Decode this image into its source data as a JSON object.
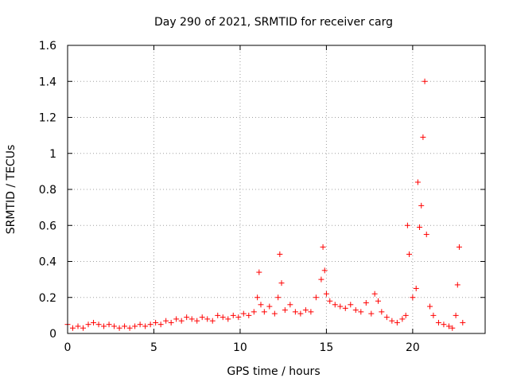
{
  "chart_data": {
    "type": "scatter",
    "title": "Day 290 of 2021, SRMTID for receiver carg",
    "xlabel": "GPS time / hours",
    "ylabel": "SRMTID / TECUs",
    "xlim": [
      0,
      24.2
    ],
    "ylim": [
      0,
      1.6
    ],
    "xticks": [
      0,
      5,
      10,
      15,
      20
    ],
    "xtick_labels": [
      "0",
      "5",
      "10",
      "15",
      "20"
    ],
    "yticks": [
      0,
      0.2,
      0.4,
      0.6,
      0.8,
      1.0,
      1.2,
      1.4,
      1.6
    ],
    "ytick_labels": [
      "0",
      "0.2",
      "0.4",
      "0.6",
      "0.8",
      "1",
      "1.2",
      "1.4",
      "1.6"
    ],
    "grid": true,
    "marker": "+",
    "color": "#ff0000",
    "series": [
      {
        "name": "SRMTID",
        "x": [
          0.0,
          0.3,
          0.6,
          0.9,
          1.2,
          1.5,
          1.8,
          2.1,
          2.4,
          2.7,
          3.0,
          3.3,
          3.6,
          3.9,
          4.2,
          4.5,
          4.8,
          5.1,
          5.4,
          5.7,
          6.0,
          6.3,
          6.6,
          6.9,
          7.2,
          7.5,
          7.8,
          8.1,
          8.4,
          8.7,
          9.0,
          9.3,
          9.6,
          9.9,
          10.2,
          10.5,
          10.8,
          11.0,
          11.1,
          11.2,
          11.4,
          11.7,
          12.0,
          12.2,
          12.3,
          12.4,
          12.6,
          12.9,
          13.2,
          13.5,
          13.8,
          14.1,
          14.4,
          14.7,
          14.8,
          14.9,
          15.0,
          15.2,
          15.5,
          15.8,
          16.1,
          16.4,
          16.7,
          17.0,
          17.3,
          17.6,
          17.8,
          18.0,
          18.2,
          18.5,
          18.8,
          19.1,
          19.4,
          19.6,
          19.7,
          19.8,
          20.0,
          20.2,
          20.3,
          20.4,
          20.5,
          20.6,
          20.7,
          20.8,
          21.0,
          21.2,
          21.5,
          21.8,
          22.1,
          22.3,
          22.5,
          22.6,
          22.7,
          22.9
        ],
        "y": [
          0.05,
          0.03,
          0.04,
          0.03,
          0.05,
          0.06,
          0.05,
          0.04,
          0.05,
          0.04,
          0.03,
          0.04,
          0.03,
          0.04,
          0.05,
          0.04,
          0.05,
          0.06,
          0.05,
          0.07,
          0.06,
          0.08,
          0.07,
          0.09,
          0.08,
          0.07,
          0.09,
          0.08,
          0.07,
          0.1,
          0.09,
          0.08,
          0.1,
          0.09,
          0.11,
          0.1,
          0.12,
          0.2,
          0.34,
          0.16,
          0.12,
          0.15,
          0.11,
          0.2,
          0.44,
          0.28,
          0.13,
          0.16,
          0.12,
          0.11,
          0.13,
          0.12,
          0.2,
          0.3,
          0.48,
          0.35,
          0.22,
          0.18,
          0.16,
          0.15,
          0.14,
          0.16,
          0.13,
          0.12,
          0.17,
          0.11,
          0.22,
          0.18,
          0.12,
          0.09,
          0.07,
          0.06,
          0.08,
          0.1,
          0.6,
          0.44,
          0.2,
          0.25,
          0.84,
          0.59,
          0.71,
          1.09,
          1.4,
          0.55,
          0.15,
          0.1,
          0.06,
          0.05,
          0.04,
          0.03,
          0.1,
          0.27,
          0.48,
          0.06
        ]
      }
    ]
  }
}
